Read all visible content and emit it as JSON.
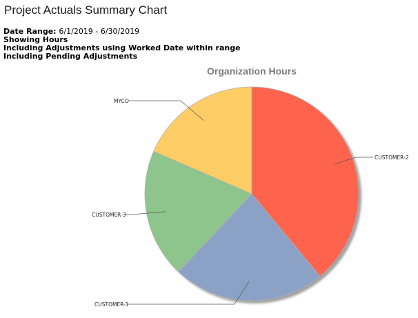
{
  "page": {
    "title": "Project Actuals Summary Chart"
  },
  "report_info": {
    "date_range_label": "Date Range:",
    "date_range_value": "6/1/2019 - 6/30/2019",
    "showing": "Showing Hours",
    "adjustments_note": "Including Adjustments using Worked Date within range",
    "pending_note": "Including Pending Adjustments"
  },
  "chart_data": {
    "type": "pie",
    "title": "Organization Hours",
    "start_angle_deg": 0,
    "direction": "clockwise",
    "shadow": true,
    "slices": [
      {
        "label": "CUSTOMER-2",
        "value": 39,
        "color": "#fe644d"
      },
      {
        "label": "CUSTOMER-1",
        "value": 23,
        "color": "#8ba2c6"
      },
      {
        "label": "CUSTOMER-3",
        "value": 19.5,
        "color": "#8ec58c"
      },
      {
        "label": "MYCO",
        "value": 18.5,
        "color": "#fecd66"
      }
    ]
  }
}
